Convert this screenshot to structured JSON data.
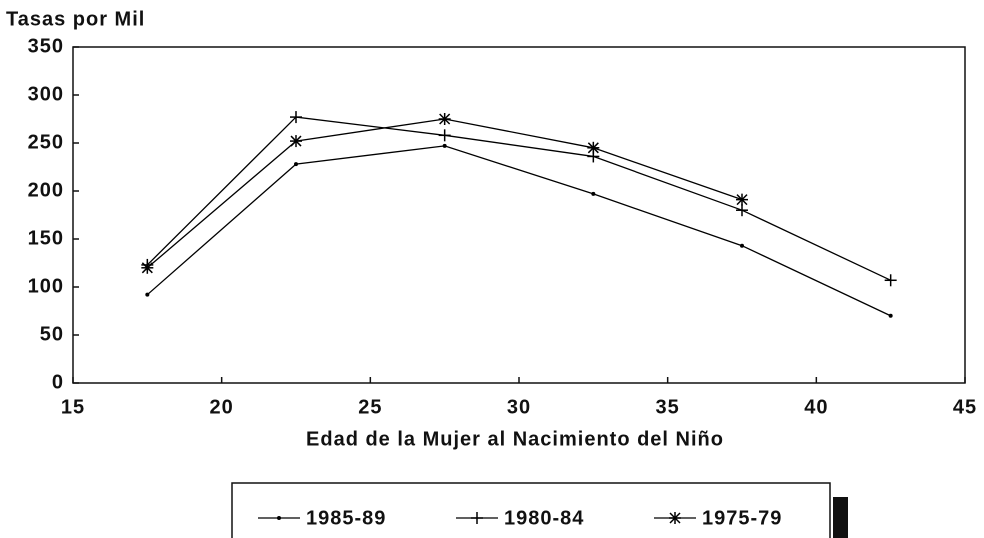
{
  "chart_data": {
    "type": "line",
    "ylabel": "Tasas por Mil",
    "xlabel": "Edad de la Mujer al Nacimiento del Niño",
    "x": [
      17.5,
      22.5,
      27.5,
      32.5,
      37.5,
      42.5
    ],
    "series": [
      {
        "name": "1985-89",
        "color": "#000000",
        "marker": "dot",
        "values": [
          92,
          228,
          247,
          197,
          143,
          70
        ]
      },
      {
        "name": "1980-84",
        "color": "#000000",
        "marker": "plus",
        "values": [
          123,
          277,
          258,
          236,
          180,
          107
        ]
      },
      {
        "name": "1975-79",
        "color": "#000000",
        "marker": "star",
        "values": [
          120,
          252,
          275,
          245,
          191,
          null
        ]
      }
    ],
    "xlim": [
      15,
      45
    ],
    "xticks": [
      15,
      20,
      25,
      30,
      35,
      40,
      45
    ],
    "ylim": [
      0,
      350
    ],
    "yticks": [
      0,
      50,
      100,
      150,
      200,
      250,
      300,
      350
    ],
    "grid": false
  }
}
